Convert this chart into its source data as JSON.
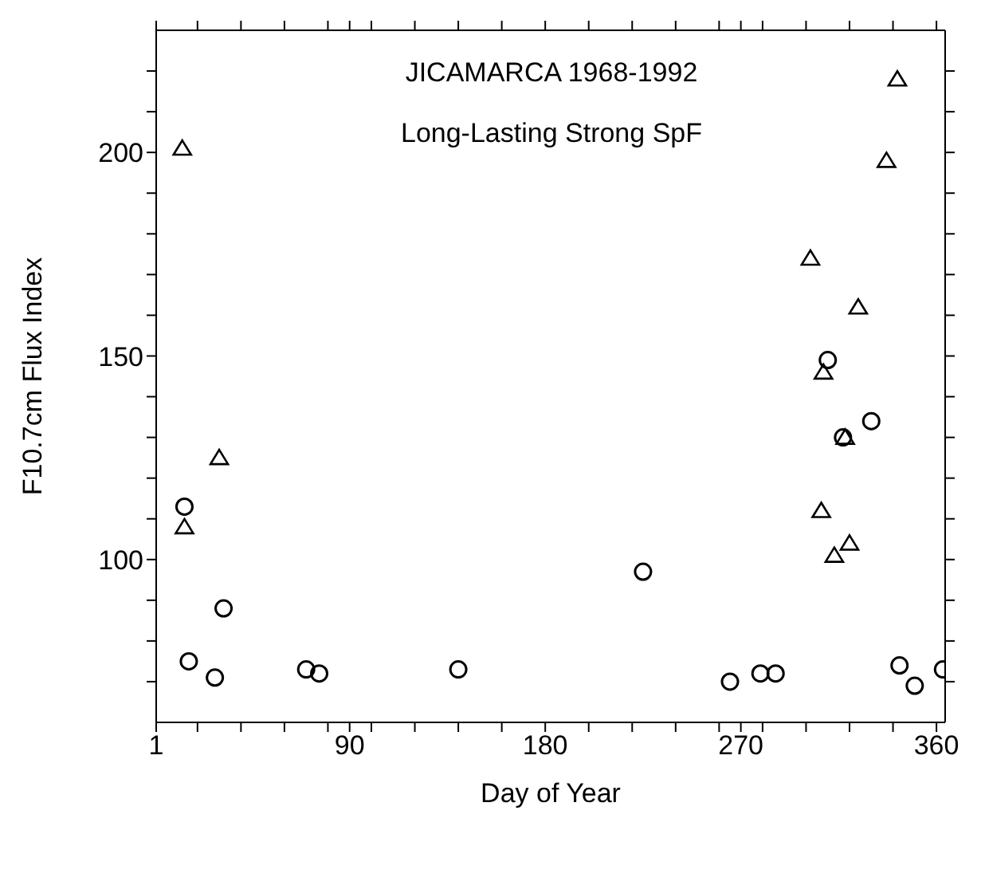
{
  "chart_data": {
    "type": "scatter",
    "title": "JICAMARCA 1968-1992",
    "subtitle": "Long-Lasting Strong SpF",
    "xlabel": "Day of Year",
    "ylabel": "F10.7cm Flux Index",
    "xlim": [
      1,
      364
    ],
    "xticks": [
      1,
      {
        "value": 20,
        "label": null
      },
      {
        "value": 40,
        "label": null
      },
      {
        "value": 60,
        "label": null
      },
      {
        "value": 80,
        "label": null
      },
      90,
      {
        "value": 100,
        "label": null
      },
      {
        "value": 120,
        "label": null
      },
      {
        "value": 140,
        "label": null
      },
      {
        "value": 160,
        "label": null
      },
      180,
      {
        "value": 200,
        "label": null
      },
      {
        "value": 220,
        "label": null
      },
      {
        "value": 240,
        "label": null
      },
      {
        "value": 260,
        "label": null
      },
      270,
      {
        "value": 280,
        "label": null
      },
      {
        "value": 300,
        "label": null
      },
      {
        "value": 320,
        "label": null
      },
      {
        "value": 340,
        "label": null
      },
      360
    ],
    "ylim": [
      60,
      230
    ],
    "yticks": [
      {
        "value": 70,
        "label": null
      },
      {
        "value": 80,
        "label": null
      },
      {
        "value": 90,
        "label": null
      },
      100,
      {
        "value": 110,
        "label": null
      },
      {
        "value": 120,
        "label": null
      },
      {
        "value": 130,
        "label": null
      },
      {
        "value": 140,
        "label": null
      },
      150,
      {
        "value": 160,
        "label": null
      },
      {
        "value": 170,
        "label": null
      },
      {
        "value": 180,
        "label": null
      },
      {
        "value": 190,
        "label": null
      },
      200,
      {
        "value": 210,
        "label": null
      },
      {
        "value": 220,
        "label": null
      }
    ],
    "series": [
      {
        "color": "#000000",
        "marker": "circle",
        "x": [
          14,
          32,
          16,
          28,
          70,
          76,
          140,
          225,
          265,
          279,
          286,
          310,
          317,
          330,
          343,
          350,
          363
        ],
        "values": [
          113,
          88,
          75,
          71,
          73,
          72,
          73,
          97,
          70,
          72,
          72,
          149,
          130,
          134,
          74,
          69,
          73
        ]
      },
      {
        "color": "#000000",
        "marker": "triangle",
        "x": [
          13,
          30,
          14,
          342,
          337,
          302,
          324,
          308,
          318,
          307,
          320,
          313
        ],
        "values": [
          201,
          125,
          108,
          218,
          198,
          174,
          162,
          146,
          130,
          112,
          104,
          101
        ]
      }
    ]
  }
}
